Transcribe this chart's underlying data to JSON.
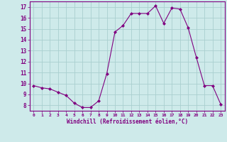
{
  "x": [
    0,
    1,
    2,
    3,
    4,
    5,
    6,
    7,
    8,
    9,
    10,
    11,
    12,
    13,
    14,
    15,
    16,
    17,
    18,
    19,
    20,
    21,
    22,
    23
  ],
  "y": [
    9.8,
    9.6,
    9.5,
    9.2,
    8.9,
    8.2,
    7.8,
    7.8,
    8.4,
    10.9,
    14.7,
    15.3,
    16.4,
    16.4,
    16.4,
    17.1,
    15.5,
    16.9,
    16.8,
    15.1,
    12.4,
    9.8,
    9.8,
    8.1
  ],
  "xlim": [
    -0.5,
    23.5
  ],
  "ylim": [
    7.5,
    17.5
  ],
  "yticks": [
    8,
    9,
    10,
    11,
    12,
    13,
    14,
    15,
    16,
    17
  ],
  "xticks": [
    0,
    1,
    2,
    3,
    4,
    5,
    6,
    7,
    8,
    9,
    10,
    11,
    12,
    13,
    14,
    15,
    16,
    17,
    18,
    19,
    20,
    21,
    22,
    23
  ],
  "xlabel": "Windchill (Refroidissement éolien,°C)",
  "line_color": "#800080",
  "marker": "D",
  "marker_size": 2.0,
  "background_color": "#ceeaea",
  "grid_color": "#aacfcf",
  "tick_color": "#800080",
  "label_color": "#800080",
  "spine_color": "#800080",
  "figsize": [
    3.2,
    2.0
  ],
  "dpi": 100
}
